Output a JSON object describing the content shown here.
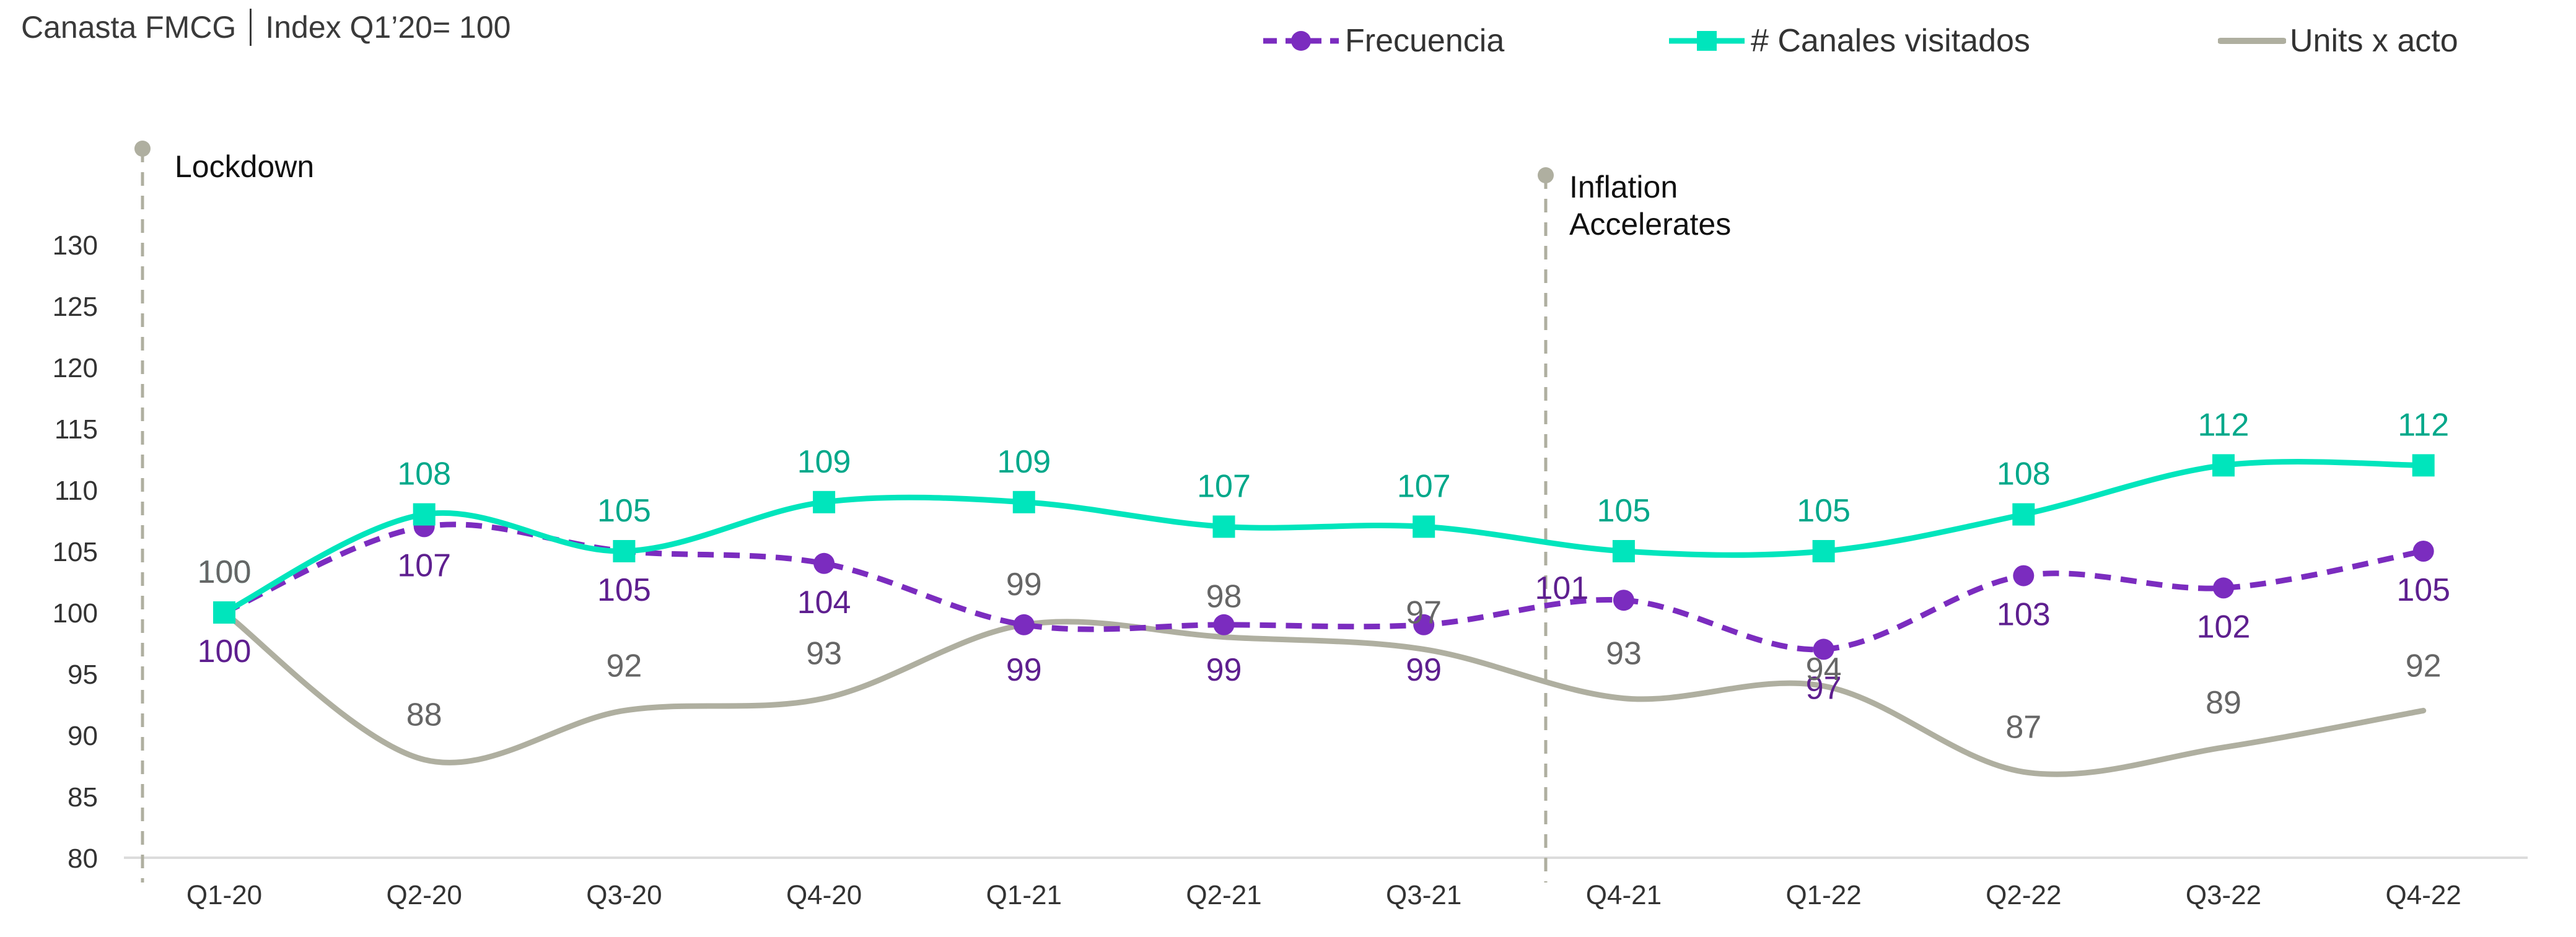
{
  "header": {
    "title": "Canasta FMCG",
    "subtitle": "Index Q1’20= 100"
  },
  "legend": [
    {
      "label": "Frecuencia",
      "color": "#7b2cbf",
      "style": "dashed-circle"
    },
    {
      "label": "# Canales visitados",
      "color": "#00e5bc",
      "style": "solid-square"
    },
    {
      "label": "Units x acto",
      "color": "#afafa0",
      "style": "solid"
    }
  ],
  "annotations": [
    {
      "label": "Lockdown",
      "position": "before Q1-20"
    },
    {
      "label_line1": "Inflation",
      "label_line2": "Accelerates",
      "position": "between Q3-21 and Q4-21"
    }
  ],
  "chart_data": {
    "type": "line",
    "title": "Canasta FMCG | Index Q1’20= 100",
    "categories": [
      "Q1-20",
      "Q2-20",
      "Q3-20",
      "Q4-20",
      "Q1-21",
      "Q2-21",
      "Q3-21",
      "Q4-21",
      "Q1-22",
      "Q2-22",
      "Q3-22",
      "Q4-22"
    ],
    "series": [
      {
        "name": "Frecuencia",
        "values": [
          100,
          107,
          105,
          104,
          99,
          99,
          99,
          101,
          97,
          103,
          102,
          105
        ],
        "color": "#7b2cbf"
      },
      {
        "name": "# Canales visitados",
        "values": [
          100,
          108,
          105,
          109,
          109,
          107,
          107,
          105,
          105,
          108,
          112,
          112
        ],
        "color": "#00e5bc"
      },
      {
        "name": "Units x acto",
        "values": [
          100,
          88,
          92,
          93,
          99,
          98,
          97,
          93,
          94,
          87,
          89,
          92
        ],
        "color": "#afafa0"
      }
    ],
    "xlabel": "",
    "ylabel": "",
    "ylim": [
      80,
      130
    ],
    "yticks": [
      80,
      85,
      90,
      95,
      100,
      105,
      110,
      115,
      120,
      125,
      130
    ],
    "grid": false,
    "legend_position": "top-right"
  }
}
